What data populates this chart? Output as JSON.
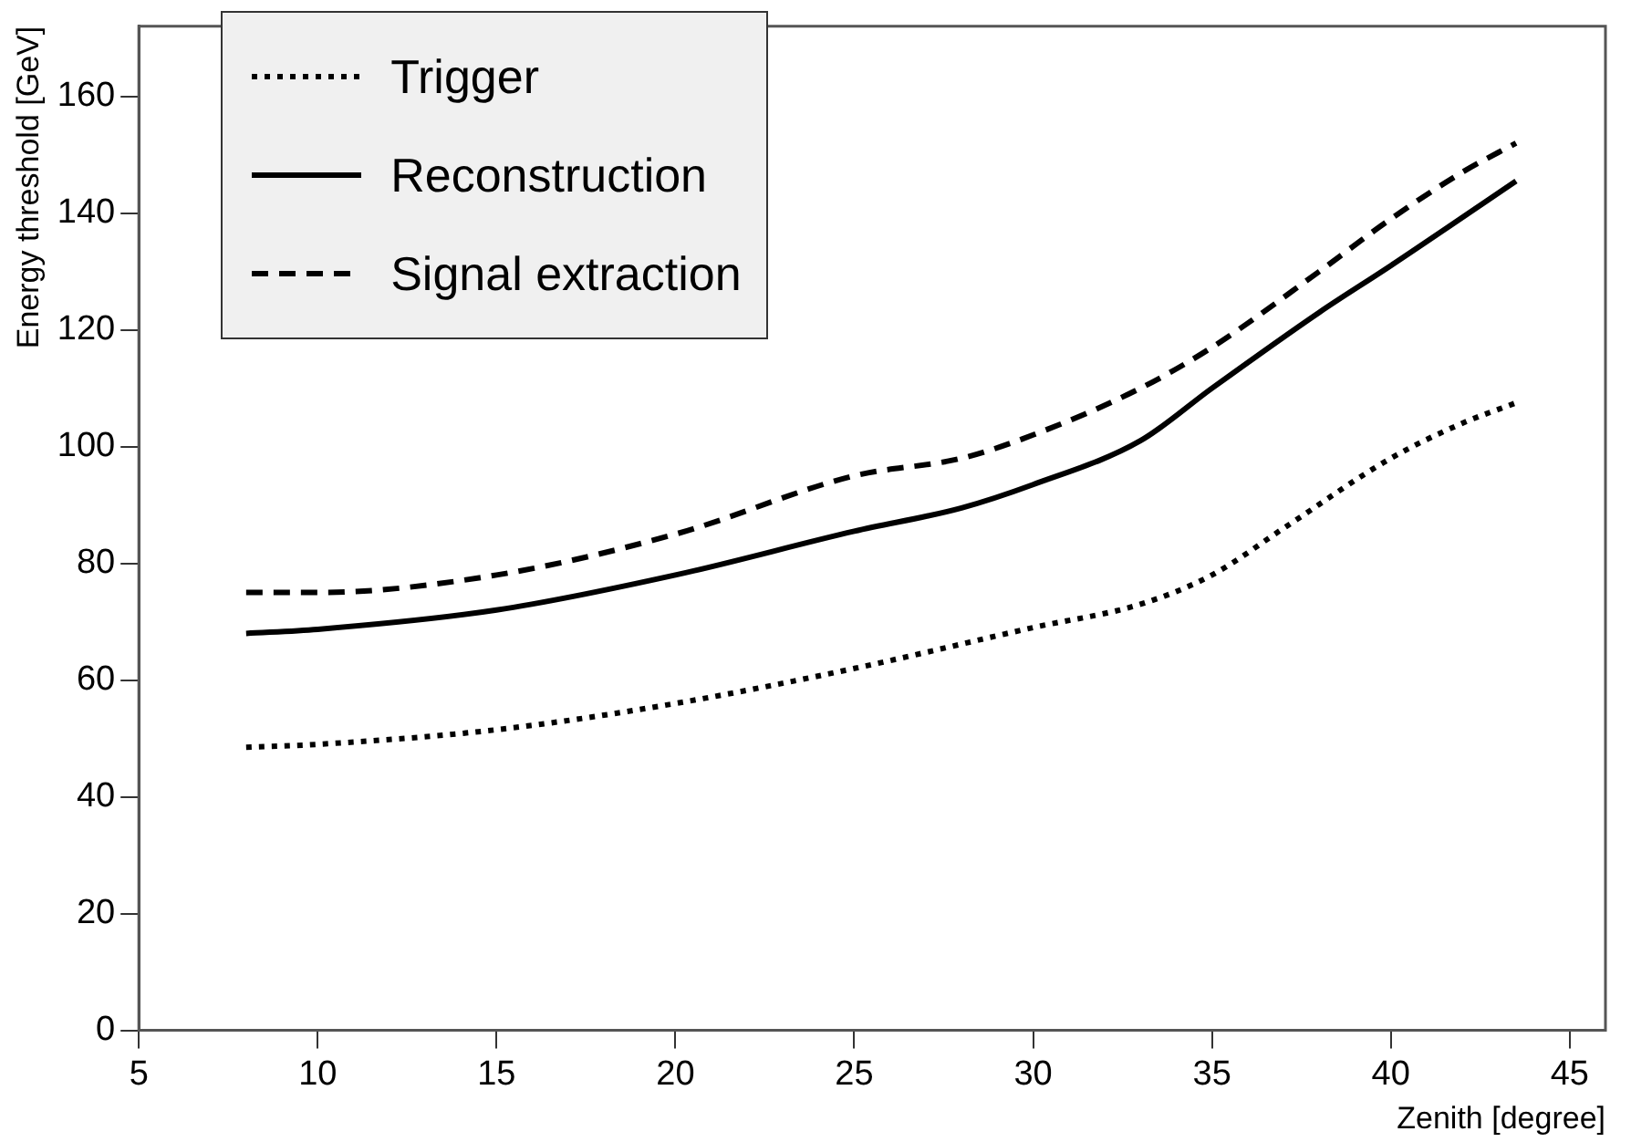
{
  "chart_data": {
    "type": "line",
    "xlabel": "Zenith [degree]",
    "ylabel": "Energy threshold [GeV]",
    "xlim": [
      5,
      46
    ],
    "xticks": [
      5,
      10,
      15,
      20,
      25,
      30,
      35,
      40,
      45
    ],
    "ylim": [
      0,
      172
    ],
    "yticks": [
      0,
      20,
      40,
      60,
      80,
      100,
      120,
      140,
      160
    ],
    "grid": false,
    "legend": "top left",
    "marker": "none",
    "series": [
      {
        "name": "Trigger",
        "color": "#000000",
        "line_style": "dotted",
        "x": [
          8,
          10,
          15,
          20,
          25,
          30,
          33,
          35,
          37,
          40,
          42,
          43.5
        ],
        "values": [
          48.5,
          49,
          51.5,
          56,
          62,
          69,
          73,
          78,
          86,
          98,
          104,
          107.5
        ]
      },
      {
        "name": "Reconstruction",
        "color": "#000000",
        "line_style": "solid",
        "x": [
          8,
          10,
          15,
          20,
          25,
          28,
          30,
          33,
          35,
          38,
          40,
          43.5
        ],
        "values": [
          68,
          68.7,
          72,
          78,
          85.5,
          89.5,
          93.5,
          101,
          110,
          123,
          131,
          145.5
        ]
      },
      {
        "name": "Signal extraction",
        "color": "#000000",
        "line_style": "dashed",
        "x": [
          8,
          10,
          15,
          20,
          25,
          28,
          30,
          33,
          35,
          38,
          40,
          42,
          43.5
        ],
        "values": [
          75,
          75,
          78,
          85,
          95,
          98,
          102,
          110,
          117,
          130,
          139,
          147,
          152
        ]
      }
    ]
  }
}
